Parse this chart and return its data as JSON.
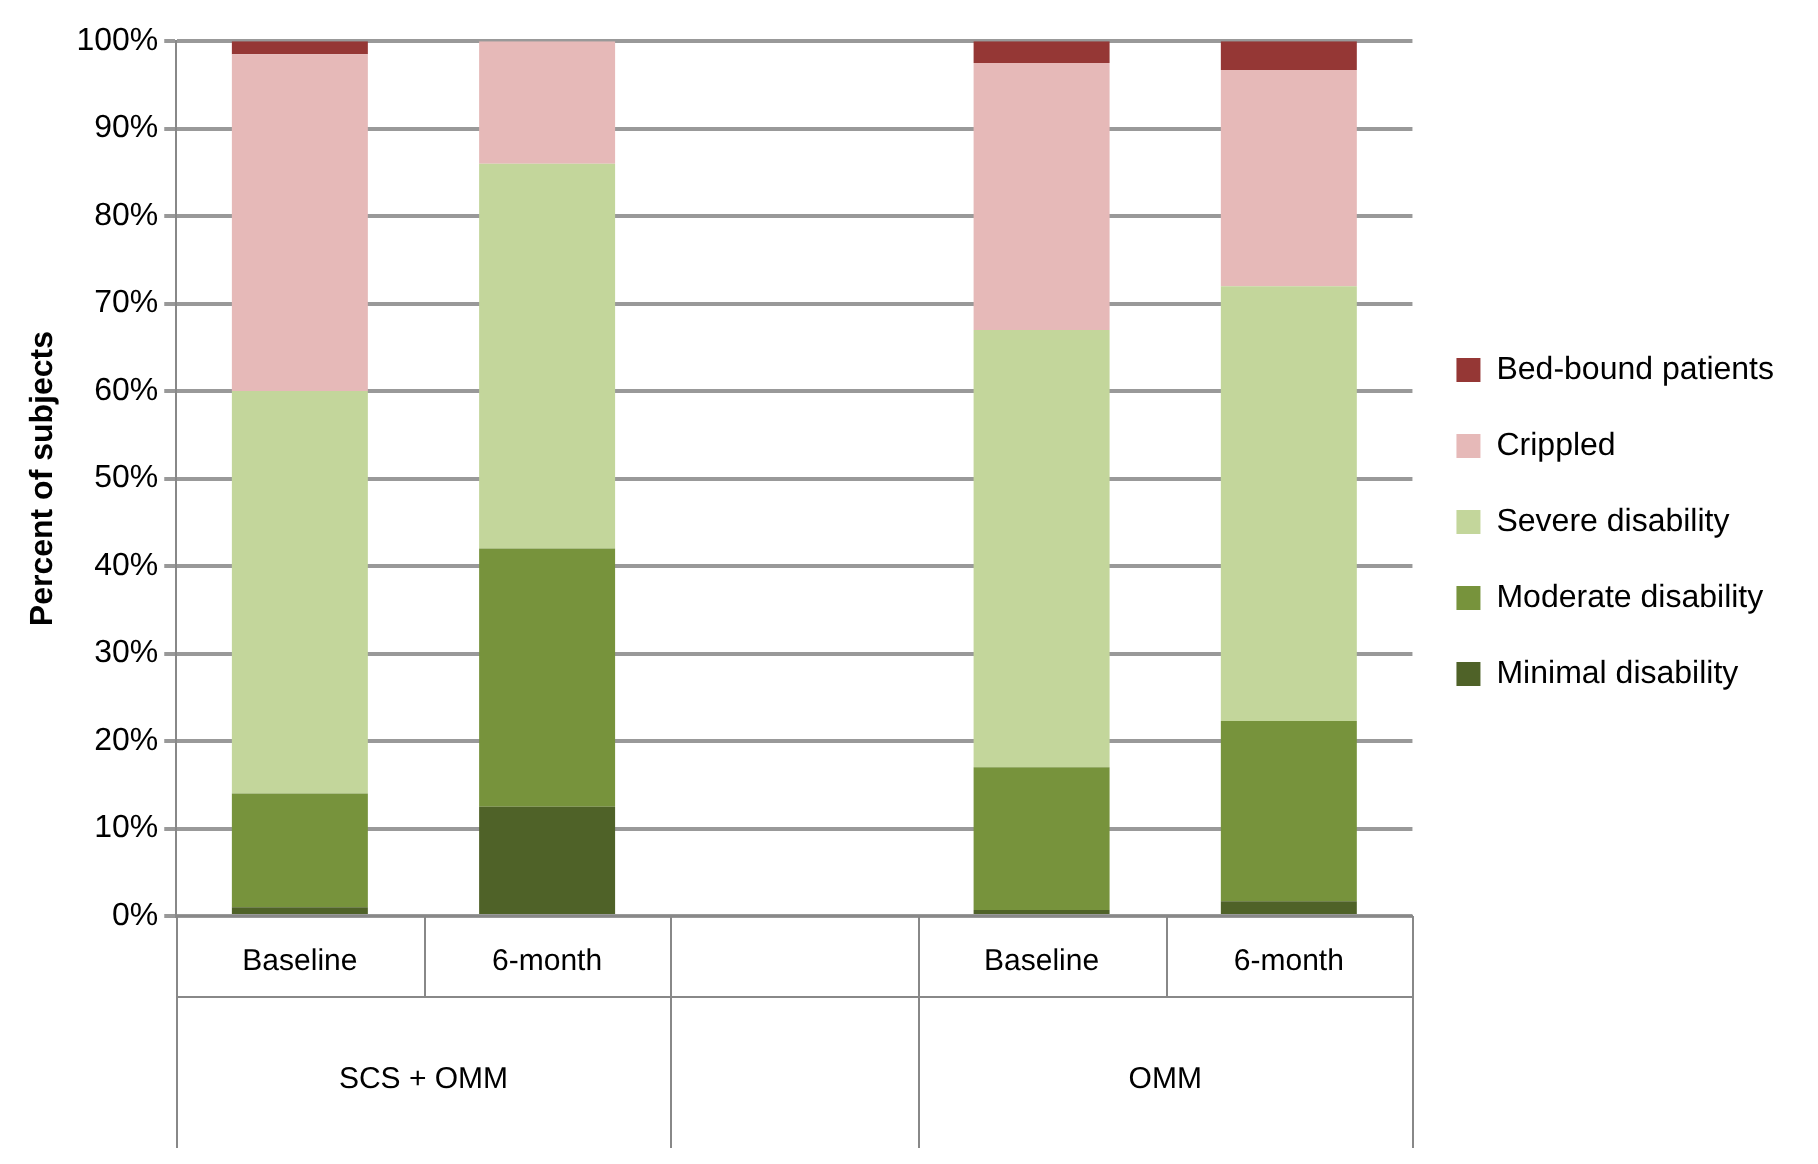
{
  "chart_data": {
    "type": "bar",
    "stacked": true,
    "ylabel": "Percent of subjects",
    "categories": [
      "Baseline",
      "6-month",
      null,
      "Baseline",
      "6-month"
    ],
    "annotations": [
      "SCS + OMM",
      "OMM"
    ],
    "series": [
      {
        "name": "Minimal disability",
        "color": "#4f6228",
        "values": [
          1,
          12.5,
          null,
          0.7,
          1.7
        ]
      },
      {
        "name": "Moderate disability",
        "color": "#77933c",
        "values": [
          13,
          29.5,
          null,
          16.3,
          20.6
        ]
      },
      {
        "name": "Severe disability",
        "color": "#c3d69b",
        "values": [
          46,
          44,
          null,
          50,
          49.7
        ]
      },
      {
        "name": "Crippled",
        "color": "#e6b9b8",
        "values": [
          38.5,
          14,
          null,
          30.5,
          24.7
        ]
      },
      {
        "name": "Bed-bound patients",
        "color": "#953735",
        "values": [
          1.5,
          0,
          null,
          2.5,
          3.3
        ]
      }
    ],
    "ylim": [
      0,
      100
    ],
    "yticks": [
      {
        "value": 0,
        "label": "0%"
      },
      {
        "value": 10,
        "label": "10%"
      },
      {
        "value": 20,
        "label": "20%"
      },
      {
        "value": 30,
        "label": "30%"
      },
      {
        "value": 40,
        "label": "40%"
      },
      {
        "value": 50,
        "label": "50%"
      },
      {
        "value": 60,
        "label": "60%"
      },
      {
        "value": 70,
        "label": "70%"
      },
      {
        "value": 80,
        "label": "80%"
      },
      {
        "value": 90,
        "label": "90%"
      },
      {
        "value": 100,
        "label": "100%"
      }
    ],
    "grid": "y",
    "legend": "right"
  }
}
